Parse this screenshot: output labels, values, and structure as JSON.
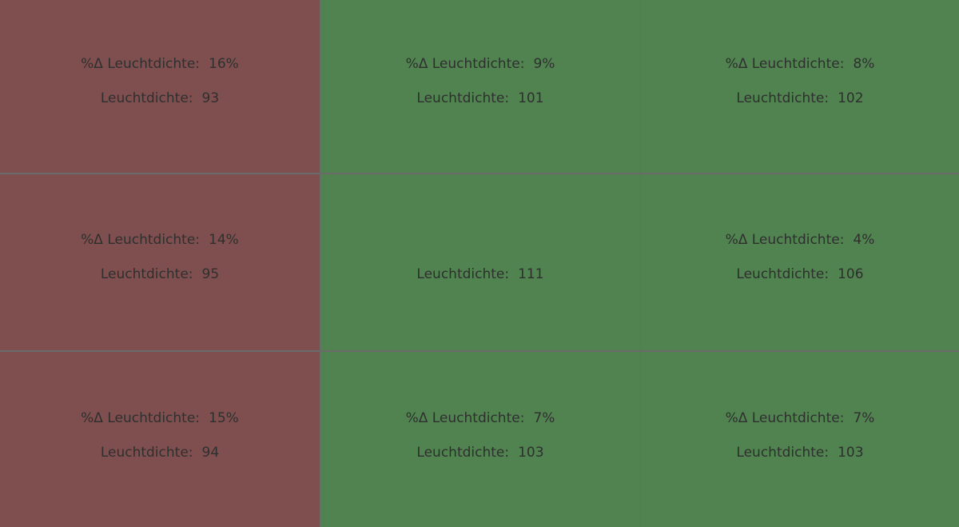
{
  "labels": {
    "delta": "%Δ Leuchtdichte:",
    "luminance": "Leuchtdichte:"
  },
  "colors": {
    "fail": "#7f4f4f",
    "pass": "#508350",
    "divider": "#6a6a6a",
    "text": "#2f2f2f"
  },
  "cells": [
    {
      "status": "fail",
      "delta": "16%",
      "luminance": "93"
    },
    {
      "status": "pass",
      "delta": "9%",
      "luminance": "101"
    },
    {
      "status": "pass",
      "delta": "8%",
      "luminance": "102"
    },
    {
      "status": "fail",
      "delta": "14%",
      "luminance": "95"
    },
    {
      "status": "pass",
      "delta": null,
      "luminance": "111"
    },
    {
      "status": "pass",
      "delta": "4%",
      "luminance": "106"
    },
    {
      "status": "fail",
      "delta": "15%",
      "luminance": "94"
    },
    {
      "status": "pass",
      "delta": "7%",
      "luminance": "103"
    },
    {
      "status": "pass",
      "delta": "7%",
      "luminance": "103"
    }
  ]
}
